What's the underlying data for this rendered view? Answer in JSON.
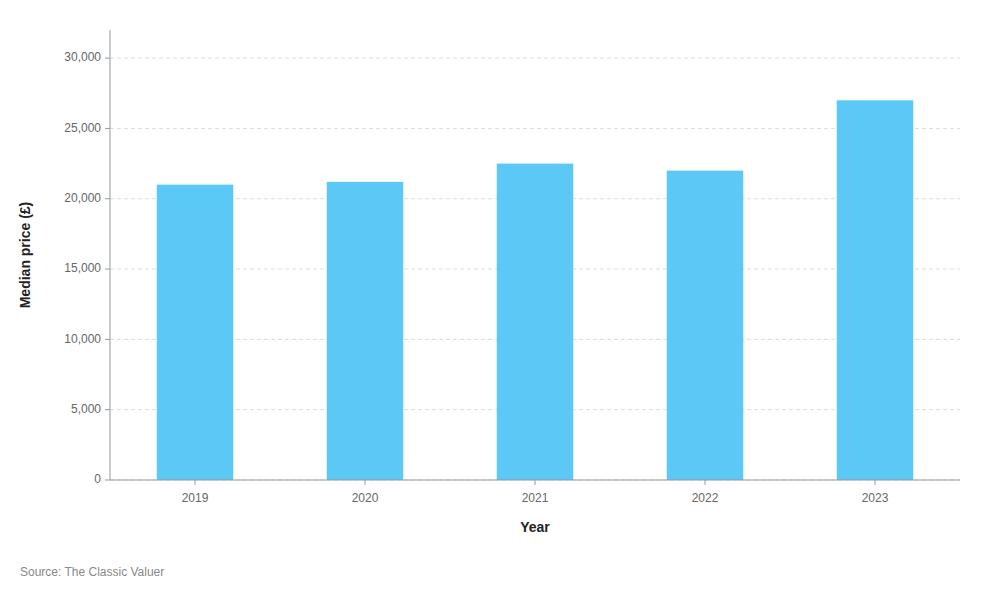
{
  "chart_data": {
    "type": "bar",
    "categories": [
      "2019",
      "2020",
      "2021",
      "2022",
      "2023"
    ],
    "values": [
      21000,
      21200,
      22500,
      22000,
      27000
    ],
    "color": "#5BC8F5",
    "xlabel": "Year",
    "ylabel": "Median price (£)",
    "source": "Source: The Classic Valuer",
    "ylim": [
      0,
      32000
    ],
    "yticks": [
      0,
      {
        "value": 5000,
        "label": "5,000"
      },
      {
        "value": 10000,
        "label": "10,000"
      },
      {
        "value": 15000,
        "label": "15,000"
      },
      {
        "value": 20000,
        "label": "20,000"
      },
      {
        "value": 25000,
        "label": "25,000"
      },
      {
        "value": 30000,
        "label": "30,000"
      }
    ],
    "grid": true
  }
}
